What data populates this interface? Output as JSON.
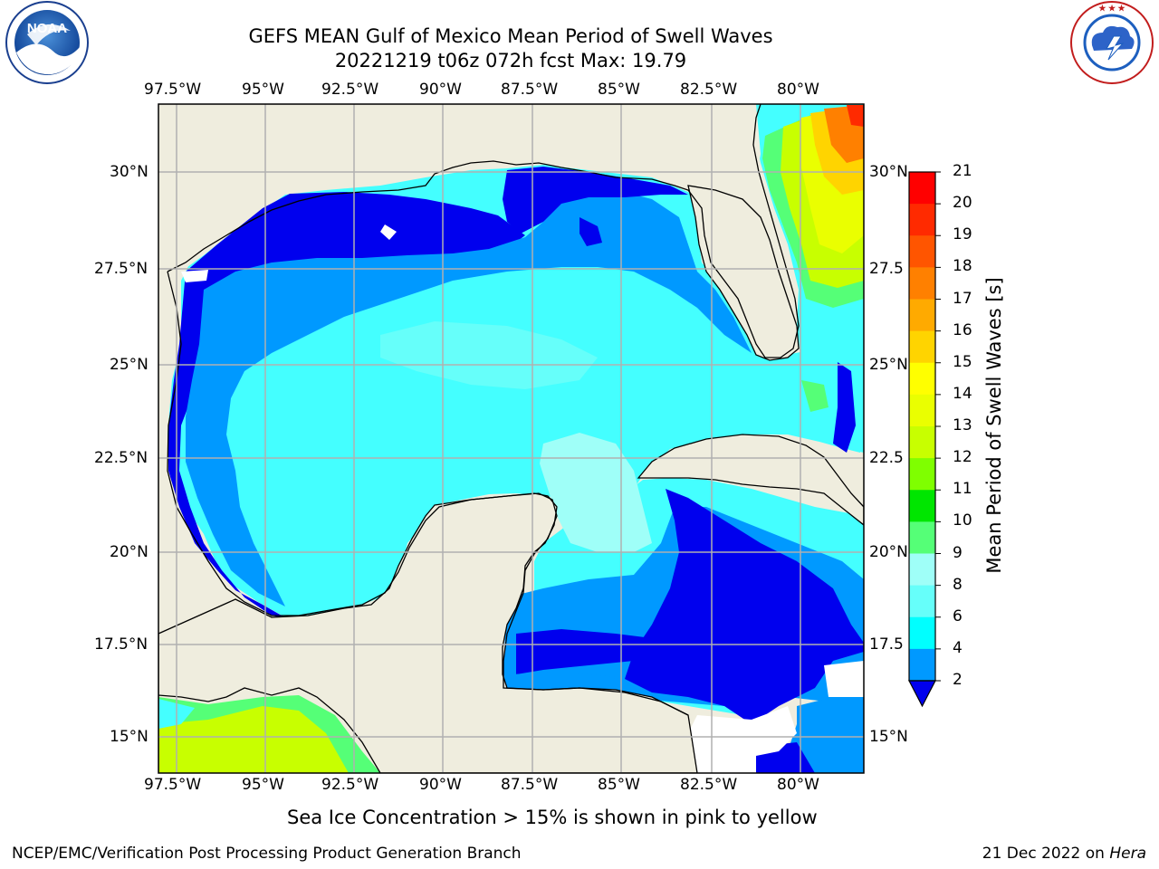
{
  "header": {
    "title_line1": "GEFS MEAN Gulf of Mexico Mean Period of Swell Waves",
    "title_line2": "20221219 t06z 072h fcst   Max: 19.79"
  },
  "logos": {
    "left": "NOAA",
    "left_ring": "NATIONAL OCEANIC AND ATMOSPHERIC ADMINISTRATION · U.S. DEPARTMENT OF COMMERCE",
    "right_ring": "NATIONAL WEATHER SERVICE"
  },
  "map": {
    "lon_labels": [
      "97.5°W",
      "95°W",
      "92.5°W",
      "90°W",
      "87.5°W",
      "85°W",
      "82.5°W",
      "80°W"
    ],
    "lat_labels_left": [
      "30°N",
      "27.5°N",
      "25°N",
      "22.5°N",
      "20°N",
      "17.5°N",
      "15°N"
    ],
    "lat_labels_right": [
      "30°N",
      "27.5",
      "25°N",
      "22.5",
      "20°N",
      "17.5",
      "15°N"
    ],
    "land_color": "#efedde",
    "grid_color": "#b0b0b0"
  },
  "colorbar": {
    "label": "Mean Period of Swell Waves [s]",
    "ticks": [
      "21",
      "20",
      "19",
      "18",
      "17",
      "16",
      "15",
      "14",
      "13",
      "12",
      "11",
      "10",
      "9",
      "8",
      "6",
      "4",
      "2"
    ],
    "colors_top_to_bottom": [
      "#ff0000",
      "#ff2a00",
      "#ff5500",
      "#ff8000",
      "#ffaa00",
      "#ffd400",
      "#ffff00",
      "#eaff00",
      "#c8ff00",
      "#7fff00",
      "#00e600",
      "#55ff77",
      "#9ffff8",
      "#66fffa",
      "#00ffff",
      "#0099ff",
      "#0000ee"
    ]
  },
  "caption": "Sea Ice Concentration > 15% is shown in pink to yellow",
  "footer": {
    "left": "NCEP/EMC/Verification Post Processing Product Generation Branch",
    "right_prefix": "21 Dec 2022 on ",
    "right_host": "Hera"
  }
}
